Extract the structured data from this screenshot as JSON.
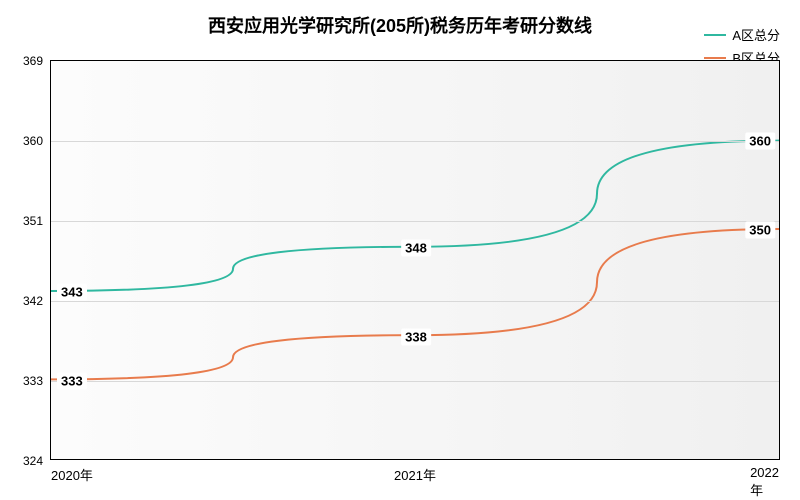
{
  "chart": {
    "type": "line",
    "title": "西安应用光学研究所(205所)税务历年考研分数线",
    "title_fontsize": 18,
    "background_color": "#ffffff",
    "plot_bg_left": "#fcfcfc",
    "plot_bg_right": "#f0f0f0",
    "border_color": "#000000",
    "grid_color": "#d8d8d8",
    "x": {
      "categories": [
        "2020年",
        "2021年",
        "2022年"
      ],
      "positions": [
        0,
        0.5,
        1
      ]
    },
    "y": {
      "min": 324,
      "max": 369,
      "ticks": [
        324,
        333,
        342,
        351,
        360,
        369
      ],
      "tick_step": 9,
      "label_fontsize": 12
    },
    "series": [
      {
        "name": "A区总分",
        "color": "#2fb8a0",
        "line_width": 2,
        "values": [
          343,
          348,
          360
        ],
        "smooth": true
      },
      {
        "name": "B区总分",
        "color": "#e87b4c",
        "line_width": 2,
        "values": [
          333,
          338,
          350
        ],
        "smooth": true
      }
    ],
    "legend": {
      "position": "top-right",
      "fontsize": 13
    },
    "data_label_fontsize": 13,
    "data_label_bg": "#ffffff"
  }
}
